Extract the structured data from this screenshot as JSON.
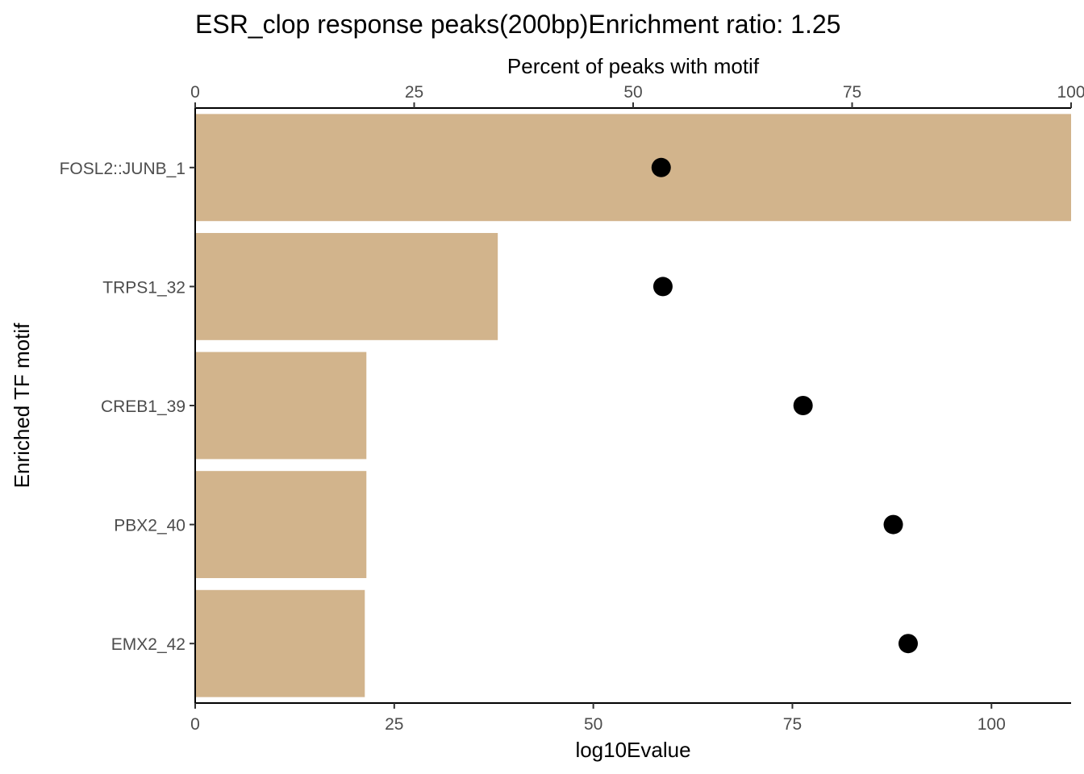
{
  "chart_data": {
    "type": "bar",
    "title": "ESR_clop response peaks(200bp)Enrichment ratio: 1.25",
    "orientation": "horizontal",
    "ylabel": "Enriched TF motif",
    "categories": [
      "FOSL2::JUNB_1",
      "TRPS1_32",
      "CREB1_39",
      "PBX2_40",
      "EMX2_42"
    ],
    "x_axis_bottom": {
      "label": "log10Evalue",
      "range": [
        0,
        110
      ],
      "ticks": [
        "0",
        "25",
        "50",
        "75",
        "100"
      ],
      "tick_values": [
        0,
        25,
        50,
        75,
        100
      ]
    },
    "x_axis_top": {
      "label": "Percent of peaks with motif",
      "range": [
        0,
        100
      ],
      "ticks": [
        "0",
        "25",
        "50",
        "75",
        "100"
      ],
      "tick_values": [
        0,
        25,
        50,
        75,
        100
      ]
    },
    "series": [
      {
        "type": "bar",
        "axis": "bottom",
        "color": "#d2b48c",
        "values": [
          110,
          38,
          21.5,
          21.5,
          21.3
        ]
      },
      {
        "type": "point",
        "axis": "top",
        "color": "#000000",
        "values": [
          53.2,
          53.4,
          69.4,
          79.7,
          81.4
        ]
      }
    ],
    "grid": false,
    "legend": "none"
  }
}
